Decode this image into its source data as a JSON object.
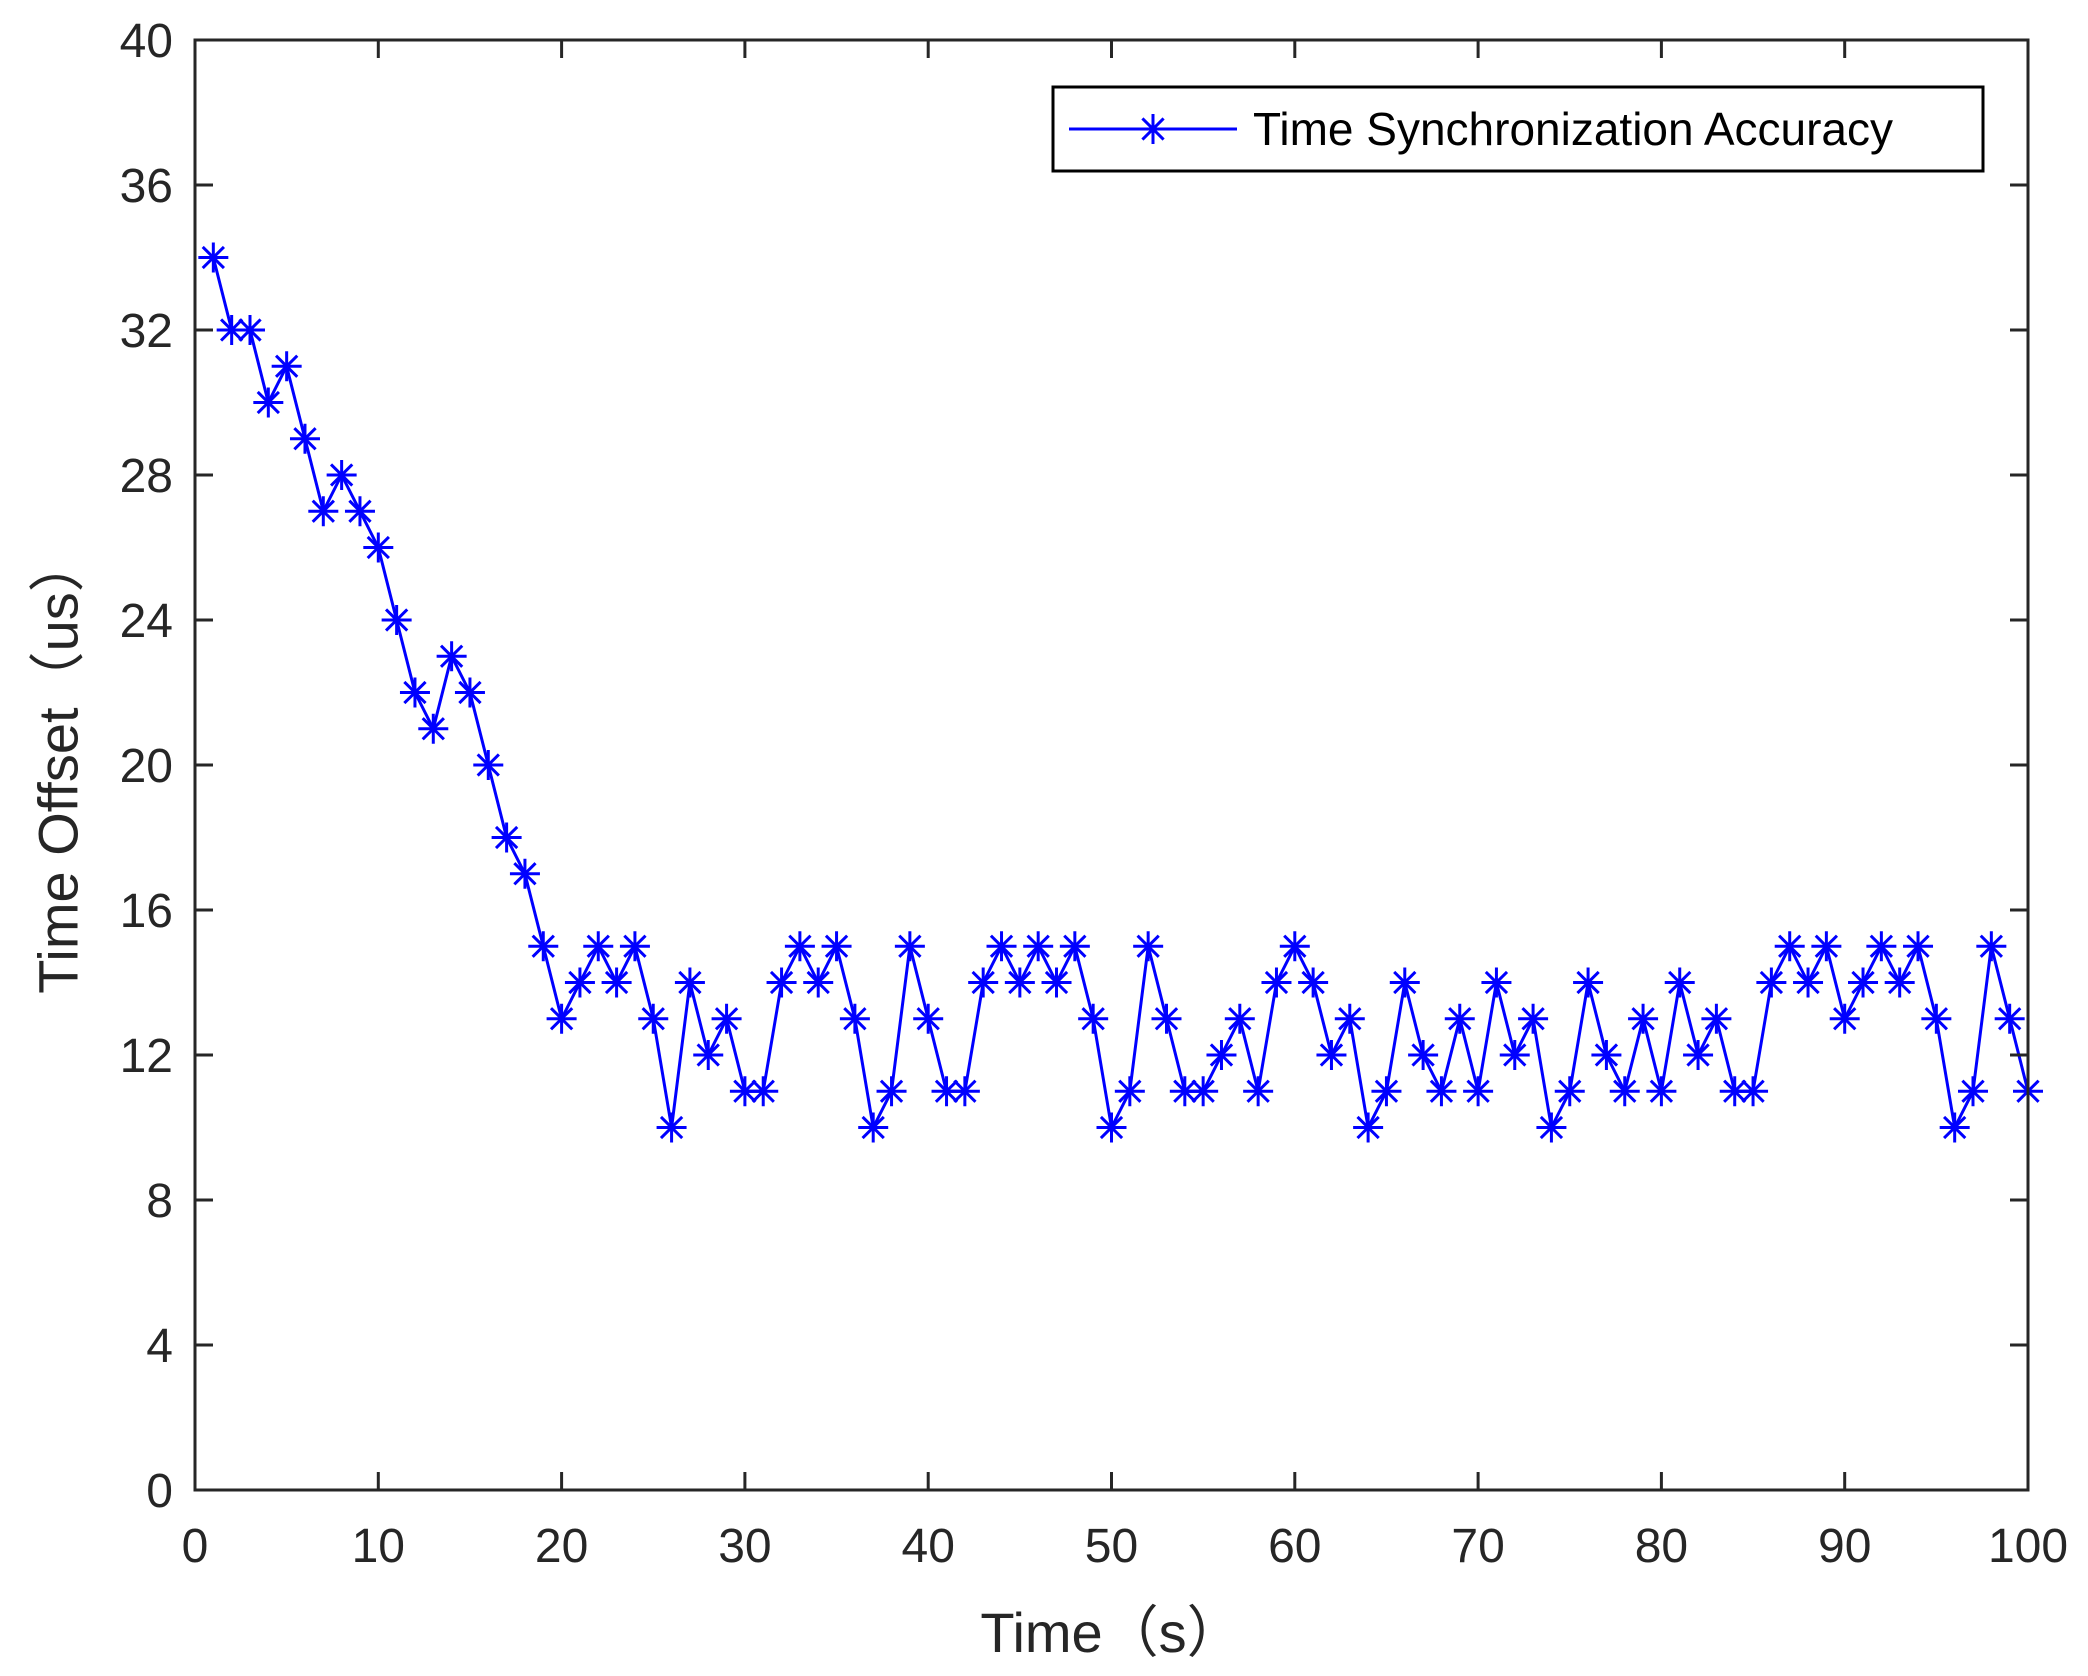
{
  "chart_data": {
    "type": "line",
    "title": "",
    "xlabel": "Time（s）",
    "ylabel": "Time Offset（us）",
    "xlim": [
      0,
      100
    ],
    "ylim": [
      0,
      40
    ],
    "xticks": [
      0,
      10,
      20,
      30,
      40,
      50,
      60,
      70,
      80,
      90,
      100
    ],
    "yticks": [
      0,
      4,
      8,
      12,
      16,
      20,
      24,
      28,
      32,
      36,
      40
    ],
    "grid": false,
    "legend_position": "top-right",
    "series": [
      {
        "name": "Time Synchronization Accuracy",
        "color": "#0000ff",
        "marker": "asterisk",
        "x": [
          1,
          2,
          3,
          4,
          5,
          6,
          7,
          8,
          9,
          10,
          11,
          12,
          13,
          14,
          15,
          16,
          17,
          18,
          19,
          20,
          21,
          22,
          23,
          24,
          25,
          26,
          27,
          28,
          29,
          30,
          31,
          32,
          33,
          34,
          35,
          36,
          37,
          38,
          39,
          40,
          41,
          42,
          43,
          44,
          45,
          46,
          47,
          48,
          49,
          50,
          51,
          52,
          53,
          54,
          55,
          56,
          57,
          58,
          59,
          60,
          61,
          62,
          63,
          64,
          65,
          66,
          67,
          68,
          69,
          70,
          71,
          72,
          73,
          74,
          75,
          76,
          77,
          78,
          79,
          80,
          81,
          82,
          83,
          84,
          85,
          86,
          87,
          88,
          89,
          90,
          91,
          92,
          93,
          94,
          95,
          96,
          97,
          98,
          99,
          100
        ],
        "y": [
          34,
          32,
          32,
          30,
          31,
          29,
          27,
          28,
          27,
          26,
          24,
          22,
          21,
          23,
          22,
          20,
          18,
          17,
          15,
          13,
          14,
          15,
          14,
          15,
          13,
          10,
          14,
          12,
          13,
          11,
          11,
          14,
          15,
          14,
          15,
          13,
          10,
          11,
          15,
          13,
          11,
          11,
          14,
          15,
          14,
          15,
          14,
          15,
          13,
          10,
          11,
          15,
          13,
          11,
          11,
          12,
          13,
          11,
          14,
          15,
          14,
          12,
          13,
          10,
          11,
          14,
          12,
          11,
          13,
          11,
          14,
          12,
          13,
          10,
          11,
          14,
          12,
          11,
          13,
          11,
          14,
          12,
          13,
          11,
          11,
          14,
          15,
          14,
          15,
          13,
          14,
          15,
          14,
          15,
          13,
          10,
          11,
          15,
          13,
          11
        ]
      }
    ]
  },
  "colors": {
    "axis": "#262626",
    "series": "#0000ff",
    "background": "#ffffff"
  }
}
